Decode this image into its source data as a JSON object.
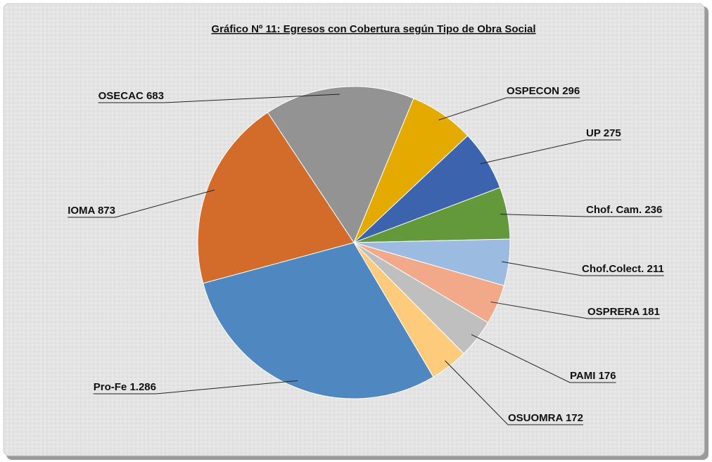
{
  "chart_data": {
    "type": "pie",
    "title": "Gráfico Nº 11: Egresos con Cobertura según Tipo de Obra Social",
    "categories": [
      "Pro-Fe",
      "IOMA",
      "OSECAC",
      "OSPECON",
      "UP",
      "Chof. Cam.",
      "Chof.Colect.",
      "OSPRERA",
      "PAMI",
      "OSUOMRA"
    ],
    "values": [
      1286,
      873,
      683,
      296,
      275,
      236,
      211,
      181,
      176,
      172
    ],
    "value_labels": [
      "1.286",
      "873",
      "683",
      "296",
      "275",
      "236",
      "211",
      "181",
      "176",
      "172"
    ],
    "colors": [
      "#4f87c0",
      "#d36c2b",
      "#939393",
      "#e5aa00",
      "#3c63ae",
      "#64993b",
      "#9bbbe0",
      "#f2a98a",
      "#bfbfbf",
      "#fecb7d"
    ]
  }
}
